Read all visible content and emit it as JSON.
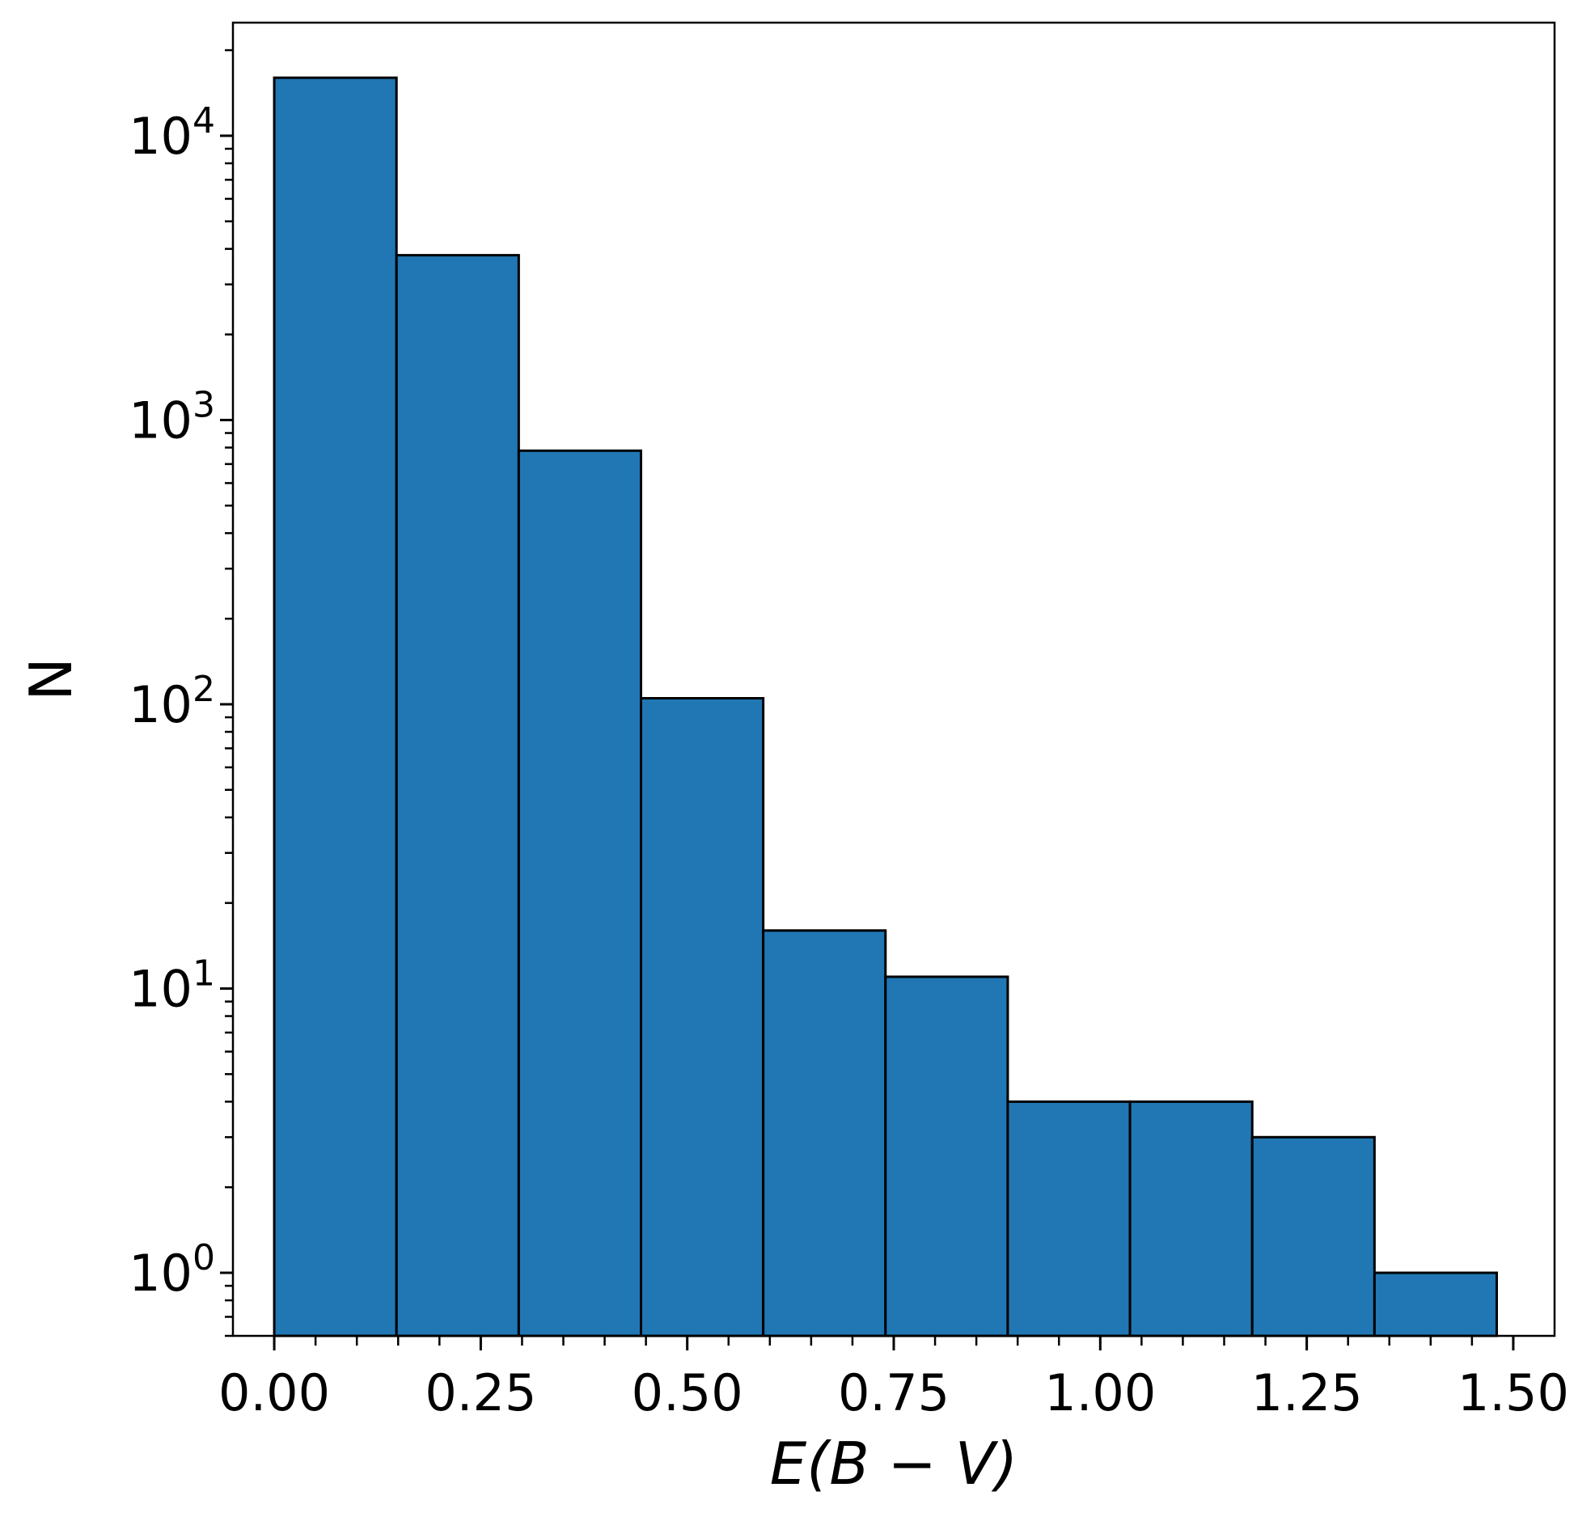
{
  "chart_data": {
    "type": "bar",
    "subtype": "histogram",
    "xlabel": "E(B − V)",
    "ylabel": "N",
    "yscale": "log",
    "xlim": [
      -0.05,
      1.55
    ],
    "ylim": [
      0.6,
      25000
    ],
    "xticks": [
      0.0,
      0.25,
      0.5,
      0.75,
      1.0,
      1.25,
      1.5
    ],
    "xtick_labels": [
      "0.00",
      "0.25",
      "0.50",
      "0.75",
      "1.00",
      "1.25",
      "1.50"
    ],
    "yticks": [
      1,
      10,
      100,
      1000,
      10000
    ],
    "ytick_labels": [
      {
        "base": "10",
        "exp": "0"
      },
      {
        "base": "10",
        "exp": "1"
      },
      {
        "base": "10",
        "exp": "2"
      },
      {
        "base": "10",
        "exp": "3"
      },
      {
        "base": "10",
        "exp": "4"
      }
    ],
    "bin_edges": [
      0.0,
      0.148,
      0.296,
      0.444,
      0.592,
      0.74,
      0.888,
      1.036,
      1.184,
      1.332,
      1.48
    ],
    "values": [
      16000,
      3800,
      780,
      105,
      16,
      11,
      4,
      4,
      3,
      1
    ],
    "colors": {
      "bar_fill": "#2077b4",
      "bar_edge": "#000000",
      "axes": "#000000"
    },
    "grid": false,
    "legend": "none"
  }
}
